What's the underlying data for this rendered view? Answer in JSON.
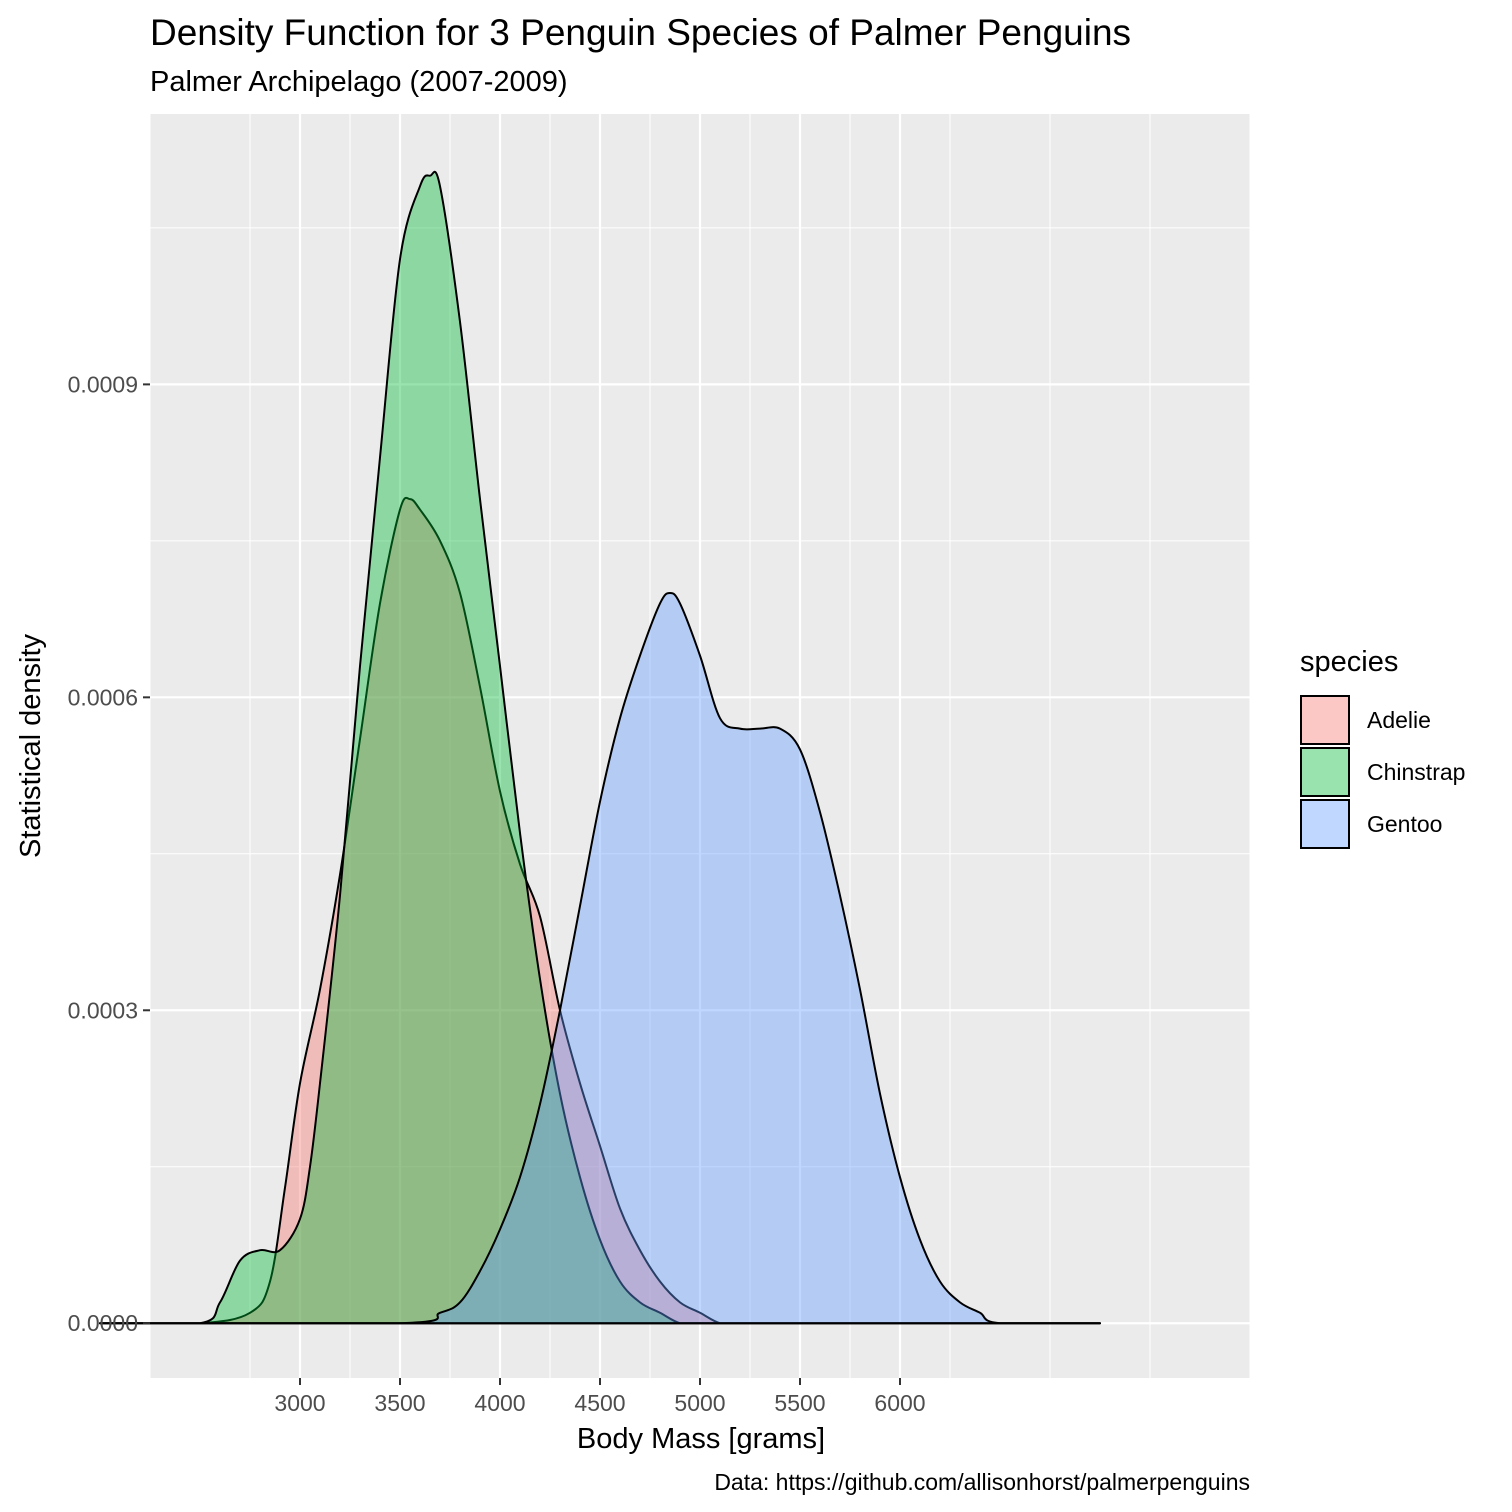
{
  "chart_data": {
    "type": "area",
    "title": "Density Function for 3 Penguin Species of Palmer Penguins",
    "subtitle": "Palmer Archipelago (2007-2009)",
    "xlabel": "Body Mass [grams]",
    "ylabel": "Statistical density",
    "caption": "Data: https://github.com/allisonhorst/palmerpenguins",
    "xlim": [
      2250,
      7750
    ],
    "ylim": [
      -5.25e-05,
      0.0011592
    ],
    "x_ticks": [
      3000,
      3500,
      4000,
      4500,
      5000,
      5500,
      6000
    ],
    "x_tick_labels": [
      "3000",
      "3500",
      "4000",
      "4500",
      "5000",
      "5500",
      "6000"
    ],
    "y_ticks": [
      0,
      0.0003,
      0.0006,
      0.0009
    ],
    "y_tick_labels": [
      "0.0000",
      "0.0003",
      "0.0006",
      "0.0009"
    ],
    "grid": true,
    "legend": {
      "title": "species",
      "position": "right"
    },
    "series": [
      {
        "name": "Adelie",
        "fill": "#F8766D",
        "x": [
          2500,
          2750,
          2850,
          2925,
          3000,
          3100,
          3200,
          3300,
          3400,
          3500,
          3550,
          3600,
          3700,
          3800,
          3900,
          4000,
          4100,
          4200,
          4300,
          4400,
          4500,
          4600,
          4700,
          4800,
          4900,
          5000,
          5100,
          5200
        ],
        "y": [
          0,
          1e-05,
          4e-05,
          0.00013,
          0.00023,
          0.00032,
          0.00043,
          0.00056,
          0.00069,
          0.00078,
          0.00079,
          0.00078,
          0.00075,
          0.0007,
          0.00061,
          0.00051,
          0.00044,
          0.00039,
          0.0003,
          0.00023,
          0.00017,
          0.00011,
          7e-05,
          4e-05,
          2e-05,
          1e-05,
          0,
          0
        ]
      },
      {
        "name": "Chinstrap",
        "fill": "#00BA38",
        "x": [
          2500,
          2600,
          2700,
          2800,
          2900,
          3000,
          3050,
          3100,
          3200,
          3300,
          3400,
          3500,
          3600,
          3650,
          3700,
          3800,
          3900,
          4000,
          4100,
          4200,
          4300,
          4400,
          4500,
          4600,
          4700,
          4800,
          4900,
          5000
        ],
        "y": [
          0,
          2e-05,
          6e-05,
          7e-05,
          7e-05,
          0.0001,
          0.00015,
          0.00023,
          0.00041,
          0.00063,
          0.00083,
          0.00102,
          0.00109,
          0.0011,
          0.00109,
          0.00096,
          0.00079,
          0.00063,
          0.00047,
          0.00033,
          0.00022,
          0.00014,
          8e-05,
          4e-05,
          2e-05,
          1e-05,
          0,
          0
        ]
      },
      {
        "name": "Gentoo",
        "fill": "#619CFF",
        "x": [
          3500,
          3700,
          3800,
          3900,
          4000,
          4100,
          4200,
          4300,
          4400,
          4500,
          4600,
          4700,
          4800,
          4850,
          4900,
          5000,
          5100,
          5200,
          5300,
          5400,
          5500,
          5600,
          5700,
          5800,
          5900,
          6000,
          6100,
          6200,
          6300,
          6400,
          6500
        ],
        "y": [
          0,
          1e-05,
          2e-05,
          5e-05,
          9e-05,
          0.00014,
          0.00021,
          0.0003,
          0.0004,
          0.0005,
          0.00058,
          0.00064,
          0.00069,
          0.0007,
          0.00069,
          0.00064,
          0.00058,
          0.00057,
          0.00057,
          0.00057,
          0.00055,
          0.00049,
          0.00041,
          0.00032,
          0.00022,
          0.00014,
          8e-05,
          4e-05,
          2e-05,
          1e-05,
          0
        ]
      }
    ]
  }
}
